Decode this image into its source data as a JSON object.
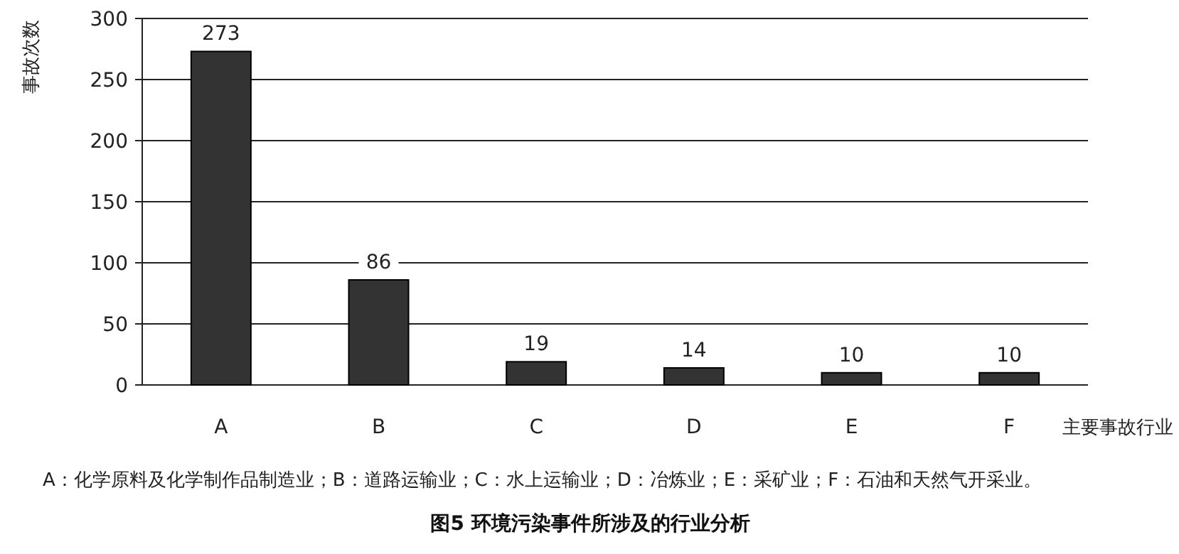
{
  "chart_data": {
    "type": "bar",
    "title": "图5 环境污染事件所涉及的行业分析",
    "xlabel": "主要事故行业",
    "ylabel": "事故次数",
    "categories": [
      "A",
      "B",
      "C",
      "D",
      "E",
      "F"
    ],
    "values": [
      273,
      86,
      19,
      14,
      10,
      10
    ],
    "color": "#333333",
    "ylim": [
      0,
      300
    ],
    "yticks": [
      0,
      50,
      100,
      150,
      200,
      250,
      300
    ],
    "grid": "y",
    "data_labels": true,
    "annotations": [
      "A：化学原料及化学制作品制造业；B：道路运输业；C：水上运输业；D：冶炼业；E：采矿业；F：石油和天然气开采业。"
    ]
  }
}
